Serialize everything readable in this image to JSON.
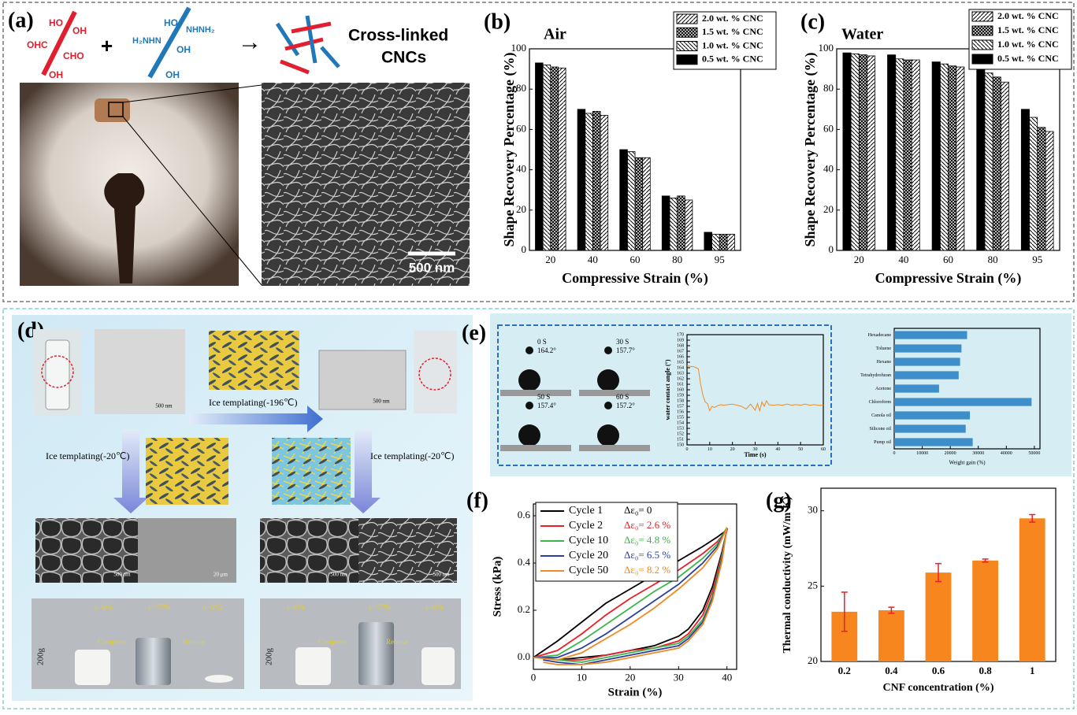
{
  "figure": {
    "panel_labels": {
      "a": "(a)",
      "b": "(b)",
      "c": "(c)",
      "d": "(d)",
      "e": "(e)",
      "f": "(f)",
      "g": "(g)"
    },
    "a": {
      "chem_left": [
        "HO",
        "OH",
        "OHC",
        "CHO",
        "OH"
      ],
      "chem_right": [
        "HO",
        "NHNH₂",
        "H₂NHN",
        "OH",
        "OH"
      ],
      "plus": "+",
      "arrow": "→",
      "product": [
        "Cross-linked",
        "CNCs"
      ],
      "scale_bar": "500 nm"
    },
    "d": {
      "arrow_top": "Ice templating(-196℃)",
      "arrow_left": "Ice templating(-20℃)",
      "arrow_right": "Ice templating(-20℃)",
      "scale_bars": [
        "500 nm",
        "500 nm",
        "500 nm",
        "20 μm",
        "500 nm",
        "500 nm"
      ],
      "strains_left": [
        "ε=0%",
        "ε=77%",
        "ε=0%"
      ],
      "strains_right": [
        "ε=0%",
        "ε=77%",
        "ε=0%"
      ],
      "weights": [
        "200g",
        "200g"
      ],
      "compress": [
        "Compress",
        "Compress"
      ],
      "release": [
        "Release",
        "Release"
      ]
    },
    "e": {
      "droplets": [
        {
          "time": "0 S",
          "angle": "164.2°"
        },
        {
          "time": "30 S",
          "angle": "157.7°"
        },
        {
          "time": "50 S",
          "angle": "157.4°"
        },
        {
          "time": "60 S",
          "angle": "157.2°"
        }
      ]
    }
  },
  "chart_data": [
    {
      "type": "bar",
      "title": "Air",
      "xlabel": "Compressive Strain (%)",
      "ylabel": "Shape Recovery Percentage (%)",
      "categories": [
        "20",
        "40",
        "60",
        "80",
        "95"
      ],
      "series": [
        {
          "name": "2.0 wt. % CNC",
          "color": "#000000",
          "pattern": "forward-diagonal",
          "values": [
            90.5,
            67,
            46,
            25,
            8
          ]
        },
        {
          "name": "1.5 wt. % CNC",
          "color": "#000000",
          "pattern": "crosshatch",
          "values": [
            91,
            69,
            46,
            27,
            8
          ]
        },
        {
          "name": "1.0 wt. % CNC",
          "color": "#000000",
          "pattern": "back-diagonal",
          "values": [
            92,
            68,
            49,
            26,
            8
          ]
        },
        {
          "name": "0.5 wt. % CNC",
          "color": "#000000",
          "pattern": "solid",
          "values": [
            93,
            70,
            50,
            27,
            9
          ]
        }
      ],
      "ylim": [
        0,
        100
      ],
      "yticks": [
        0,
        20,
        40,
        60,
        80,
        100
      ],
      "legend": "upper right"
    },
    {
      "type": "bar",
      "title": "Water",
      "xlabel": "Compressive Strain (%)",
      "ylabel": "Shape Recovery Percentage (%)",
      "categories": [
        "20",
        "40",
        "60",
        "80",
        "95"
      ],
      "series": [
        {
          "name": "2.0 wt. % CNC",
          "color": "#000000",
          "pattern": "forward-diagonal",
          "values": [
            96.5,
            94.5,
            91,
            83.5,
            59
          ]
        },
        {
          "name": "1.5 wt. % CNC",
          "color": "#000000",
          "pattern": "crosshatch",
          "values": [
            97,
            94.5,
            91.5,
            86,
            61
          ]
        },
        {
          "name": "1.0 wt. % CNC",
          "color": "#000000",
          "pattern": "back-diagonal",
          "values": [
            97.5,
            95,
            92.5,
            88,
            66
          ]
        },
        {
          "name": "0.5 wt. % CNC",
          "color": "#000000",
          "pattern": "solid",
          "values": [
            98,
            97,
            93.5,
            91.5,
            70
          ]
        }
      ],
      "ylim": [
        0,
        100
      ],
      "yticks": [
        0,
        20,
        40,
        60,
        80,
        100
      ],
      "legend": "upper right"
    },
    {
      "type": "line",
      "xlabel": "Time (s)",
      "ylabel": "water contact angle (°)",
      "x": [
        0,
        1,
        2,
        3,
        4,
        5,
        6,
        7,
        8,
        9,
        10,
        11,
        12,
        13,
        14,
        15,
        16,
        18,
        20,
        22,
        24,
        26,
        28,
        30,
        31,
        32,
        33,
        34,
        35,
        36,
        38,
        40,
        42,
        44,
        46,
        48,
        50,
        52,
        54,
        56,
        58,
        60
      ],
      "series": [
        {
          "color": "#f08a24",
          "values": [
            164.3,
            164.3,
            164.2,
            164.2,
            164.0,
            163.8,
            161.0,
            159.0,
            157.8,
            157.5,
            156.2,
            157.0,
            156.8,
            157.0,
            157.2,
            157.3,
            157.2,
            157.3,
            157.4,
            157.2,
            157.0,
            156.5,
            157.4,
            156.3,
            157.5,
            156.2,
            157.8,
            157.0,
            158.0,
            157.3,
            157.2,
            157.3,
            157.2,
            157.4,
            157.2,
            157.3,
            157.2,
            157.4,
            157.2,
            157.3,
            157.2,
            157.2
          ]
        }
      ],
      "xlim": [
        0,
        60
      ],
      "xticks": [
        0,
        10,
        20,
        30,
        40,
        50,
        60
      ],
      "ylim": [
        150,
        170
      ],
      "yticks": [
        150,
        151,
        152,
        153,
        154,
        155,
        156,
        157,
        158,
        159,
        160,
        161,
        162,
        163,
        164,
        165,
        166,
        167,
        168,
        169,
        170
      ]
    },
    {
      "type": "barh",
      "xlabel": "Weight gain (%)",
      "categories": [
        "Hexadecane",
        "Toluene",
        "Hexane",
        "Tetrahydrofuran",
        "Acetone",
        "Chloroform",
        "Canola oil",
        "Silicone oil",
        "Pump oil"
      ],
      "values": [
        26000,
        24000,
        23500,
        23000,
        16000,
        49000,
        27000,
        25500,
        28000
      ],
      "color": "#3d8ec9",
      "xlim": [
        0,
        52000
      ],
      "xticks": [
        0,
        10000,
        20000,
        30000,
        40000,
        50000
      ]
    },
    {
      "type": "line",
      "xlabel": "Strain (%)",
      "ylabel": "Stress (kPa)",
      "x": [
        0,
        5,
        10,
        15,
        20,
        25,
        30,
        35,
        38,
        40,
        39,
        37,
        35,
        32,
        30,
        25,
        20,
        15,
        10,
        5,
        2
      ],
      "series": [
        {
          "name": "Cycle 1",
          "color": "#000000",
          "values": [
            0,
            0.07,
            0.15,
            0.23,
            0.29,
            0.35,
            0.41,
            0.47,
            0.51,
            0.54,
            0.45,
            0.3,
            0.2,
            0.12,
            0.09,
            0.05,
            0.03,
            0.01,
            0,
            -0.01,
            0
          ]
        },
        {
          "name": "Cycle 2",
          "color": "#e8202a",
          "values": [
            0,
            0.03,
            0.1,
            0.18,
            0.25,
            0.31,
            0.37,
            0.44,
            0.49,
            0.54,
            0.44,
            0.28,
            0.18,
            0.1,
            0.07,
            0.04,
            0.03,
            0.01,
            -0.01,
            -0.01,
            0
          ]
        },
        {
          "name": "Cycle 10",
          "color": "#3cb64a",
          "values": [
            0,
            0.01,
            0.07,
            0.14,
            0.21,
            0.28,
            0.34,
            0.42,
            0.48,
            0.55,
            0.43,
            0.26,
            0.16,
            0.09,
            0.06,
            0.04,
            0.02,
            0,
            -0.02,
            -0.01,
            0
          ]
        },
        {
          "name": "Cycle 20",
          "color": "#2b3f9e",
          "values": [
            0,
            0,
            0.04,
            0.1,
            0.17,
            0.24,
            0.31,
            0.4,
            0.47,
            0.55,
            0.42,
            0.25,
            0.15,
            0.08,
            0.05,
            0.03,
            0.01,
            -0.01,
            -0.03,
            -0.02,
            -0.01
          ]
        },
        {
          "name": "Cycle 50",
          "color": "#f08a24",
          "values": [
            0,
            -0.01,
            0.02,
            0.08,
            0.14,
            0.21,
            0.29,
            0.38,
            0.46,
            0.55,
            0.41,
            0.24,
            0.14,
            0.07,
            0.04,
            0.02,
            0,
            -0.02,
            -0.03,
            -0.03,
            -0.02
          ]
        }
      ],
      "annotations": [
        "Δε₀= 0",
        "Δε₀= 2.6 %",
        "Δε₀= 4.8 %",
        "Δε₀= 6.5 %",
        "Δε₀= 8.2 %"
      ],
      "xlim": [
        0,
        42
      ],
      "xticks": [
        0,
        10,
        20,
        30,
        40
      ],
      "ylim": [
        -0.05,
        0.65
      ],
      "yticks": [
        {
          "value": 0,
          "label": "0.0"
        },
        0.2,
        0.4,
        0.6
      ],
      "legend": "upper left"
    },
    {
      "type": "bar",
      "xlabel": "CNF concentration (%)",
      "ylabel": "Thermal conductivity (mW/m·K)",
      "categories": [
        "0.2",
        "0.4",
        "0.6",
        "0.8",
        "1"
      ],
      "values": [
        23.3,
        23.4,
        25.9,
        26.7,
        29.5
      ],
      "errors": [
        1.3,
        0.2,
        0.6,
        0.1,
        0.25
      ],
      "color": "#f7861f",
      "error_color": "#e8202a",
      "ylim": [
        20,
        31.5
      ],
      "yticks": [
        20,
        25,
        30
      ]
    }
  ]
}
